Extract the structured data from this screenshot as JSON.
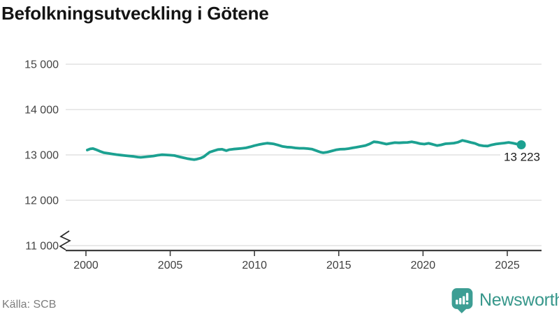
{
  "title": "Befolkningsutveckling i Götene",
  "source": "Källa: SCB",
  "logo": {
    "text": "Newsworthy",
    "icon": "speech-bubble-bar-chart-exclamation",
    "color": "#3D9E94",
    "text_color": "#37978B"
  },
  "colors": {
    "line": "#1CA191",
    "grid": "#DCDCDC",
    "axis": "#3F3F3F",
    "tick_text": "#444444",
    "title_text": "#141414",
    "annotation_text": "#1C1C1C",
    "muted_text": "#7D7D7D"
  },
  "chart_data": {
    "type": "line",
    "title": "Befolkningsutveckling i Götene",
    "xlabel": "",
    "ylabel": "",
    "grid": "horizontal",
    "legend": "none",
    "ylim": [
      11000,
      15000
    ],
    "xlim": [
      2000,
      2026
    ],
    "y_axis_break": true,
    "x_ticks": [
      {
        "v": 2000,
        "label": "2000"
      },
      {
        "v": 2005,
        "label": "2005"
      },
      {
        "v": 2010,
        "label": "2010"
      },
      {
        "v": 2015,
        "label": "2015"
      },
      {
        "v": 2020,
        "label": "2020"
      },
      {
        "v": 2025,
        "label": "2025"
      }
    ],
    "y_ticks": [
      {
        "v": 11000,
        "label": "11 000"
      },
      {
        "v": 12000,
        "label": "12 000"
      },
      {
        "v": 13000,
        "label": "13 000"
      },
      {
        "v": 14000,
        "label": "14 000"
      },
      {
        "v": 15000,
        "label": "15 000"
      }
    ],
    "end_annotation": {
      "value": 13223,
      "label": "13 223"
    },
    "series": [
      {
        "color": "#1CA191",
        "points": [
          [
            2000.08,
            13108
          ],
          [
            2000.25,
            13132
          ],
          [
            2000.42,
            13140
          ],
          [
            2000.58,
            13118
          ],
          [
            2000.83,
            13080
          ],
          [
            2001.08,
            13048
          ],
          [
            2001.33,
            13034
          ],
          [
            2001.58,
            13020
          ],
          [
            2001.83,
            13006
          ],
          [
            2002.08,
            12996
          ],
          [
            2002.33,
            12984
          ],
          [
            2002.58,
            12976
          ],
          [
            2002.83,
            12966
          ],
          [
            2003.08,
            12952
          ],
          [
            2003.25,
            12946
          ],
          [
            2003.5,
            12956
          ],
          [
            2003.75,
            12966
          ],
          [
            2004.0,
            12976
          ],
          [
            2004.25,
            12992
          ],
          [
            2004.5,
            13004
          ],
          [
            2004.75,
            13000
          ],
          [
            2005.0,
            12994
          ],
          [
            2005.25,
            12986
          ],
          [
            2005.5,
            12962
          ],
          [
            2005.75,
            12940
          ],
          [
            2006.0,
            12920
          ],
          [
            2006.25,
            12904
          ],
          [
            2006.42,
            12896
          ],
          [
            2006.58,
            12906
          ],
          [
            2006.83,
            12932
          ],
          [
            2007.0,
            12962
          ],
          [
            2007.17,
            13012
          ],
          [
            2007.33,
            13058
          ],
          [
            2007.58,
            13090
          ],
          [
            2007.83,
            13118
          ],
          [
            2008.08,
            13124
          ],
          [
            2008.33,
            13094
          ],
          [
            2008.5,
            13116
          ],
          [
            2008.75,
            13128
          ],
          [
            2009.0,
            13136
          ],
          [
            2009.25,
            13144
          ],
          [
            2009.5,
            13156
          ],
          [
            2009.75,
            13178
          ],
          [
            2010.0,
            13204
          ],
          [
            2010.25,
            13226
          ],
          [
            2010.5,
            13244
          ],
          [
            2010.75,
            13258
          ],
          [
            2011.0,
            13250
          ],
          [
            2011.17,
            13240
          ],
          [
            2011.42,
            13214
          ],
          [
            2011.67,
            13186
          ],
          [
            2011.92,
            13172
          ],
          [
            2012.17,
            13168
          ],
          [
            2012.42,
            13154
          ],
          [
            2012.67,
            13146
          ],
          [
            2012.92,
            13146
          ],
          [
            2013.17,
            13138
          ],
          [
            2013.42,
            13126
          ],
          [
            2013.67,
            13094
          ],
          [
            2013.92,
            13060
          ],
          [
            2014.08,
            13048
          ],
          [
            2014.33,
            13062
          ],
          [
            2014.58,
            13086
          ],
          [
            2014.83,
            13110
          ],
          [
            2015.08,
            13124
          ],
          [
            2015.33,
            13128
          ],
          [
            2015.58,
            13138
          ],
          [
            2015.83,
            13156
          ],
          [
            2016.08,
            13170
          ],
          [
            2016.33,
            13188
          ],
          [
            2016.58,
            13206
          ],
          [
            2016.83,
            13242
          ],
          [
            2017.08,
            13290
          ],
          [
            2017.33,
            13280
          ],
          [
            2017.58,
            13260
          ],
          [
            2017.83,
            13238
          ],
          [
            2018.08,
            13256
          ],
          [
            2018.33,
            13270
          ],
          [
            2018.58,
            13266
          ],
          [
            2018.83,
            13272
          ],
          [
            2019.08,
            13276
          ],
          [
            2019.33,
            13290
          ],
          [
            2019.58,
            13270
          ],
          [
            2019.83,
            13248
          ],
          [
            2020.08,
            13238
          ],
          [
            2020.33,
            13256
          ],
          [
            2020.58,
            13232
          ],
          [
            2020.83,
            13206
          ],
          [
            2021.08,
            13222
          ],
          [
            2021.33,
            13246
          ],
          [
            2021.58,
            13252
          ],
          [
            2021.83,
            13260
          ],
          [
            2022.08,
            13280
          ],
          [
            2022.33,
            13320
          ],
          [
            2022.58,
            13300
          ],
          [
            2022.83,
            13276
          ],
          [
            2023.08,
            13254
          ],
          [
            2023.33,
            13216
          ],
          [
            2023.58,
            13200
          ],
          [
            2023.83,
            13196
          ],
          [
            2024.08,
            13222
          ],
          [
            2024.33,
            13240
          ],
          [
            2024.58,
            13252
          ],
          [
            2024.83,
            13262
          ],
          [
            2025.08,
            13276
          ],
          [
            2025.33,
            13260
          ],
          [
            2025.58,
            13238
          ],
          [
            2025.83,
            13223
          ]
        ]
      }
    ]
  }
}
